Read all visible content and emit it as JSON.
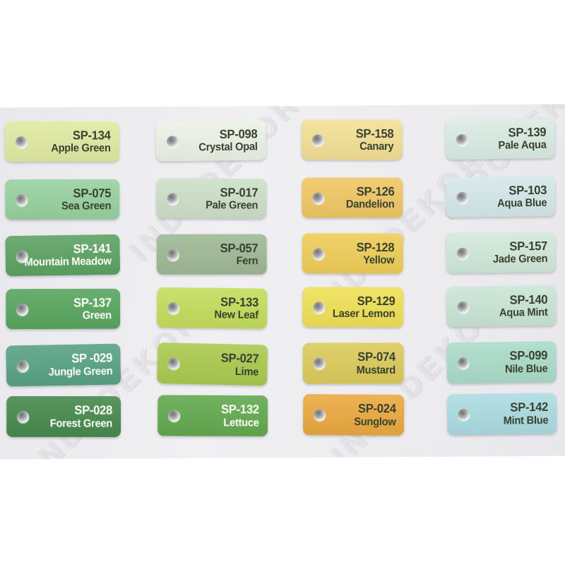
{
  "photo": {
    "watermark_text": "INDODEKOR",
    "rows": [
      {
        "tags": [
          {
            "code": "SP-134",
            "name": "Apple Green",
            "color": "#e0eaa2",
            "text": "dark"
          },
          {
            "code": "SP-098",
            "name": "Crystal Opal",
            "color": "#ecf2e6",
            "text": "dark"
          },
          {
            "code": "SP-158",
            "name": "Canary",
            "color": "#f3e095",
            "text": "dark"
          },
          {
            "code": "SP-139",
            "name": "Pale Aqua",
            "color": "#daece4",
            "text": "dark"
          }
        ]
      },
      {
        "tags": [
          {
            "code": "SP-075",
            "name": "Sea Green",
            "color": "#98d19f",
            "text": "dark"
          },
          {
            "code": "SP-017",
            "name": "Pale Green",
            "color": "#cde0c8",
            "text": "dark"
          },
          {
            "code": "SP-126",
            "name": "Dandelion",
            "color": "#f0c765",
            "text": "dark"
          },
          {
            "code": "SP-103",
            "name": "Aqua Blue",
            "color": "#d5e8ea",
            "text": "dark"
          }
        ]
      },
      {
        "tags": [
          {
            "code": "SP-141",
            "name": "Mountain Meadow",
            "color": "#5da263",
            "text": "light"
          },
          {
            "code": "SP-057",
            "name": "Fern",
            "color": "#9fb896",
            "text": "dark"
          },
          {
            "code": "SP-128",
            "name": "Yellow",
            "color": "#eecd58",
            "text": "dark"
          },
          {
            "code": "SP-157",
            "name": "Jade Green",
            "color": "#d2e9db",
            "text": "dark"
          }
        ]
      },
      {
        "tags": [
          {
            "code": "SP-137",
            "name": "Green",
            "color": "#58a55e",
            "text": "light"
          },
          {
            "code": "SP-133",
            "name": "New Leaf",
            "color": "#c4dd5c",
            "text": "dark"
          },
          {
            "code": "SP-129",
            "name": "Laser Lemon",
            "color": "#efe057",
            "text": "dark"
          },
          {
            "code": "SP-140",
            "name": "Aqua Mint",
            "color": "#c9e5d5",
            "text": "dark"
          }
        ]
      },
      {
        "tags": [
          {
            "code": "SP -029",
            "name": "Jungle Green",
            "color": "#58a285",
            "text": "light"
          },
          {
            "code": "SP-027",
            "name": "Lime",
            "color": "#aaca4f",
            "text": "dark"
          },
          {
            "code": "SP-074",
            "name": "Mustard",
            "color": "#dbcb5c",
            "text": "dark"
          },
          {
            "code": "SP-099",
            "name": "Nile Blue",
            "color": "#abdcc9",
            "text": "dark"
          }
        ]
      },
      {
        "tags": [
          {
            "code": "SP-028",
            "name": "Forest Green",
            "color": "#468a4d",
            "text": "light"
          },
          {
            "code": "SP-132",
            "name": "Lettuce",
            "color": "#62a94f",
            "text": "light"
          },
          {
            "code": "SP-024",
            "name": "Sunglow",
            "color": "#eaa940",
            "text": "dark"
          },
          {
            "code": "SP-142",
            "name": "Mint Blue",
            "color": "#acdce1",
            "text": "dark"
          }
        ]
      }
    ]
  },
  "colors": {
    "page_background": "#ffffff",
    "photo_background": "#ecebee",
    "dark_label": "#39422f",
    "light_label": "#f7f8f1"
  }
}
